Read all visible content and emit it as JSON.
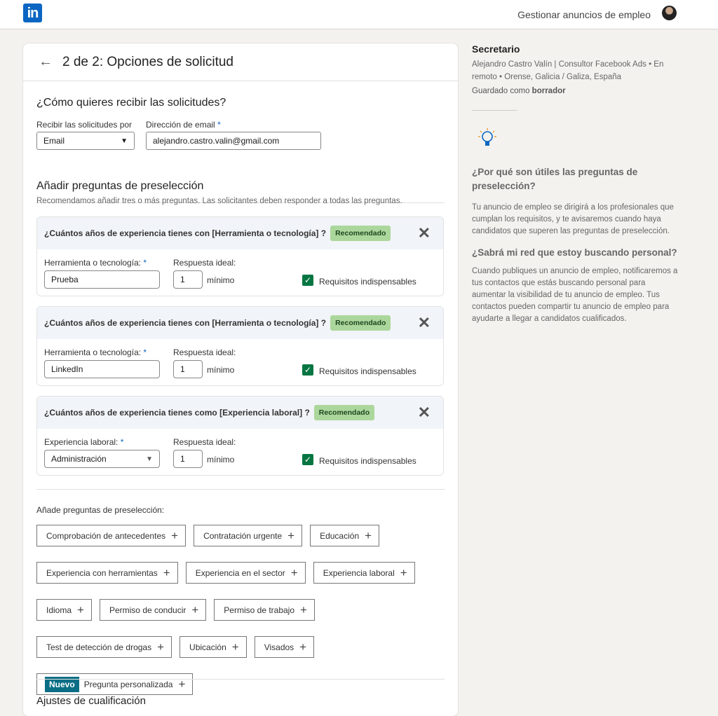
{
  "nav": {
    "logo": "in",
    "manage": "Gestionar anuncios de empleo"
  },
  "header": {
    "title": "2 de 2: Opciones de solicitud"
  },
  "receive": {
    "heading": "¿Cómo quieres recibir las solicitudes?",
    "method_label": "Recibir las solicitudes por",
    "method_value": "Email",
    "email_label": "Dirección de email",
    "email_value": "alejandro.castro.valin@gmail.com"
  },
  "screening": {
    "heading": "Añadir preguntas de preselección",
    "desc": "Recomendamos añadir tres o más preguntas. Las solicitantes deben responder a todas las preguntas.",
    "questions": [
      {
        "title": "¿Cuántos años de experiencia tienes con [Herramienta o tecnología] ?",
        "badge": "Recomendado",
        "field_label": "Herramienta o tecnología:",
        "field_value": "Prueba",
        "ideal_label": "Respuesta ideal:",
        "ideal_value": "1",
        "min": "mínimo",
        "check": "Requisitos indispensables",
        "checked": true
      },
      {
        "title": "¿Cuántos años de experiencia tienes con [Herramienta o tecnología] ?",
        "badge": "Recomendado",
        "field_label": "Herramienta o tecnología:",
        "field_value": "LinkedIn",
        "ideal_label": "Respuesta ideal:",
        "ideal_value": "1",
        "min": "mínimo",
        "check": "Requisitos indispensables",
        "checked": true
      },
      {
        "title": "¿Cuántos años de experiencia tienes como [Experiencia laboral] ?",
        "badge": "Recomendado",
        "field_label": "Experiencia laboral:",
        "field_value": "Administración",
        "ideal_label": "Respuesta ideal:",
        "ideal_value": "1",
        "min": "mínimo",
        "check": "Requisitos indispensables",
        "checked": true
      }
    ]
  },
  "add": {
    "label": "Añade preguntas de preselección:",
    "chips": [
      "Comprobación de antecedentes",
      "Contratación urgente",
      "Educación",
      "Experiencia con herramientas",
      "Experiencia en el sector",
      "Experiencia laboral",
      "Idioma",
      "Permiso de conducir",
      "Permiso de trabajo",
      "Test de detección de drogas",
      "Ubicación",
      "Visados"
    ],
    "new_badge": "Nuevo",
    "custom": "Pregunta personalizada"
  },
  "qualification": {
    "heading": "Ajustes de cualificación"
  },
  "sidebar": {
    "job_title": "Secretario",
    "meta1": "Alejandro Castro Valín | Consultor Facebook Ads •  En",
    "meta2": "remoto •  Orense, Galicia / Galiza, España",
    "saved_prefix": "Guardado como ",
    "saved_state": "borrador",
    "h1": "¿Por qué son útiles las preguntas de preselección?",
    "p1": "Tu anuncio de empleo se dirigirá a los profesionales que cumplan los requisitos, y te avisaremos cuando haya candidatos que superen las preguntas de preselección.",
    "h2": "¿Sabrá mi red que estoy buscando personal?",
    "p2": "Cuando publiques un anuncio de empleo, notificaremos a tus contactos que estás buscando personal para aumentar la visibilidad de tu anuncio de empleo. Tus contactos pueden compartir tu anuncio de empleo para ayudarte a llegar a candidatos cualificados."
  },
  "colors": {
    "brand": "#0a66c2",
    "check": "#057642",
    "badge": "#acd79c",
    "new": "#0a6e85"
  }
}
